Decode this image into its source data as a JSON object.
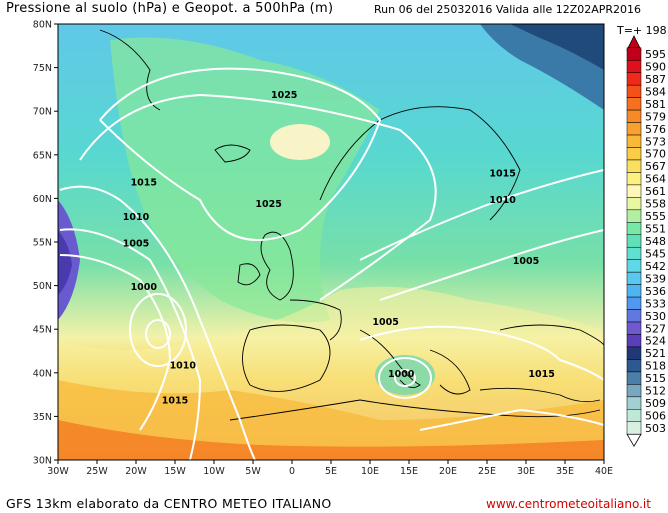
{
  "header": {
    "title": "Pressione al suolo (hPa) e Geopot. a 500hPa (m)",
    "run_info": "Run 06 del 25032016  Valida alle 12Z02APR2016",
    "time_step": "T=+ 198"
  },
  "footer": {
    "left": "GFS 13km elaborato da CENTRO METEO ITALIANO",
    "right": "www.centrometeoitaliano.it"
  },
  "map": {
    "lat_labels": [
      "80N",
      "75N",
      "70N",
      "65N",
      "60N",
      "55N",
      "50N",
      "45N",
      "40N",
      "35N",
      "30N"
    ],
    "lon_labels": [
      "30W",
      "25W",
      "20W",
      "15W",
      "10W",
      "5W",
      "0",
      "5E",
      "10E",
      "15E",
      "20E",
      "25E",
      "30E",
      "35E",
      "40E"
    ],
    "isobar_labels": [
      {
        "text": "1025",
        "lon": -1,
        "lat": 71.5
      },
      {
        "text": "1025",
        "lon": -3,
        "lat": 59
      },
      {
        "text": "1015",
        "lon": -19,
        "lat": 61.5
      },
      {
        "text": "1010",
        "lon": -20,
        "lat": 57.5
      },
      {
        "text": "1005",
        "lon": -20,
        "lat": 54.5
      },
      {
        "text": "1000",
        "lon": -19,
        "lat": 49.5
      },
      {
        "text": "1010",
        "lon": -14,
        "lat": 40.5
      },
      {
        "text": "1015",
        "lon": -15,
        "lat": 36.5
      },
      {
        "text": "1005",
        "lon": 12,
        "lat": 45.5
      },
      {
        "text": "1000",
        "lon": 14,
        "lat": 39.5
      },
      {
        "text": "1015",
        "lon": 27,
        "lat": 62.5
      },
      {
        "text": "1010",
        "lon": 27,
        "lat": 59.5
      },
      {
        "text": "1005",
        "lon": 30,
        "lat": 52.5
      },
      {
        "text": "1015",
        "lon": 32,
        "lat": 39.5
      }
    ]
  },
  "legend": {
    "values": [
      "595",
      "590",
      "587",
      "584",
      "581",
      "579",
      "576",
      "573",
      "570",
      "567",
      "564",
      "561",
      "558",
      "555",
      "551",
      "548",
      "545",
      "542",
      "539",
      "536",
      "533",
      "530",
      "527",
      "524",
      "521",
      "518",
      "515",
      "512",
      "509",
      "506",
      "503"
    ],
    "colors": [
      "#c0001a",
      "#e0101a",
      "#f02a1a",
      "#f4501a",
      "#f67020",
      "#f78a28",
      "#f8a030",
      "#f9b838",
      "#facc48",
      "#fbe060",
      "#fcf080",
      "#fdf8b8",
      "#e8f8a0",
      "#b0f0a0",
      "#78e8a8",
      "#60e0b8",
      "#60e0d0",
      "#60d8e8",
      "#58c8f0",
      "#50b4f0",
      "#5098f0",
      "#6078e0",
      "#7058d0",
      "#5a40b8",
      "#203878",
      "#2a5a90",
      "#4a80a8",
      "#78a8c0",
      "#a0d0d0",
      "#c0e8d8",
      "#d8f0e0"
    ]
  }
}
